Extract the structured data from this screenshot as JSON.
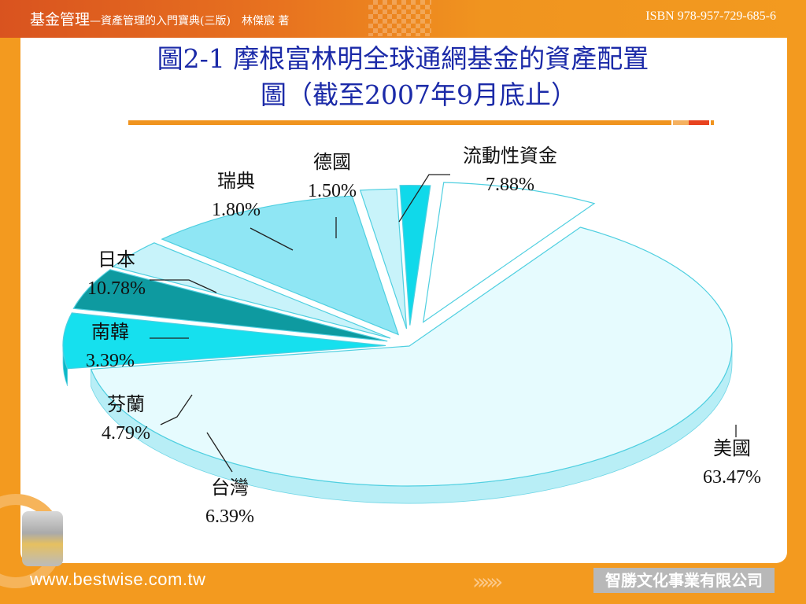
{
  "header": {
    "book_title": "基金管理",
    "book_subtitle": "—資產管理的入門寶典(三版)　林傑宸 著",
    "isbn": "ISBN 978-957-729-685-6"
  },
  "slide": {
    "title_line1": "圖2-1 摩根富林明全球通網基金的資產配置",
    "title_line2": "圖（截至2007年9月底止）"
  },
  "footer": {
    "website": "www.bestwise.com.tw",
    "arrows": "»»»",
    "publisher": "智勝文化事業有限公司"
  },
  "chart_data": {
    "type": "pie",
    "title": "圖2-1 摩根富林明全球通網基金的資產配置圖（截至2007年9月底止）",
    "unit": "%",
    "slices": [
      {
        "label": "美國",
        "value": 63.47,
        "value_label": "63.47%",
        "color": "#e6fbfe",
        "side": "#b8eef6"
      },
      {
        "label": "台灣",
        "value": 6.39,
        "value_label": "6.39%",
        "color": "#16e0ee",
        "side": "#0cb8c6"
      },
      {
        "label": "芬蘭",
        "value": 4.79,
        "value_label": "4.79%",
        "color": "#0e9aa0",
        "side": "#066d73"
      },
      {
        "label": "南韓",
        "value": 3.39,
        "value_label": "3.39%",
        "color": "#c8f3fa",
        "side": "#9fe2ec"
      },
      {
        "label": "日本",
        "value": 10.78,
        "value_label": "10.78%",
        "color": "#8fe6f4",
        "side": "#5fcfe2"
      },
      {
        "label": "瑞典",
        "value": 1.8,
        "value_label": "1.80%",
        "color": "#c8f3fa",
        "side": "#9fe2ec"
      },
      {
        "label": "德國",
        "value": 1.5,
        "value_label": "1.50%",
        "color": "#10d9ea",
        "side": "#0ab0c0"
      },
      {
        "label": "流動性資金",
        "value": 7.88,
        "value_label": "7.88%",
        "color": "#ffffff",
        "side": "#e9fbfd"
      }
    ]
  }
}
